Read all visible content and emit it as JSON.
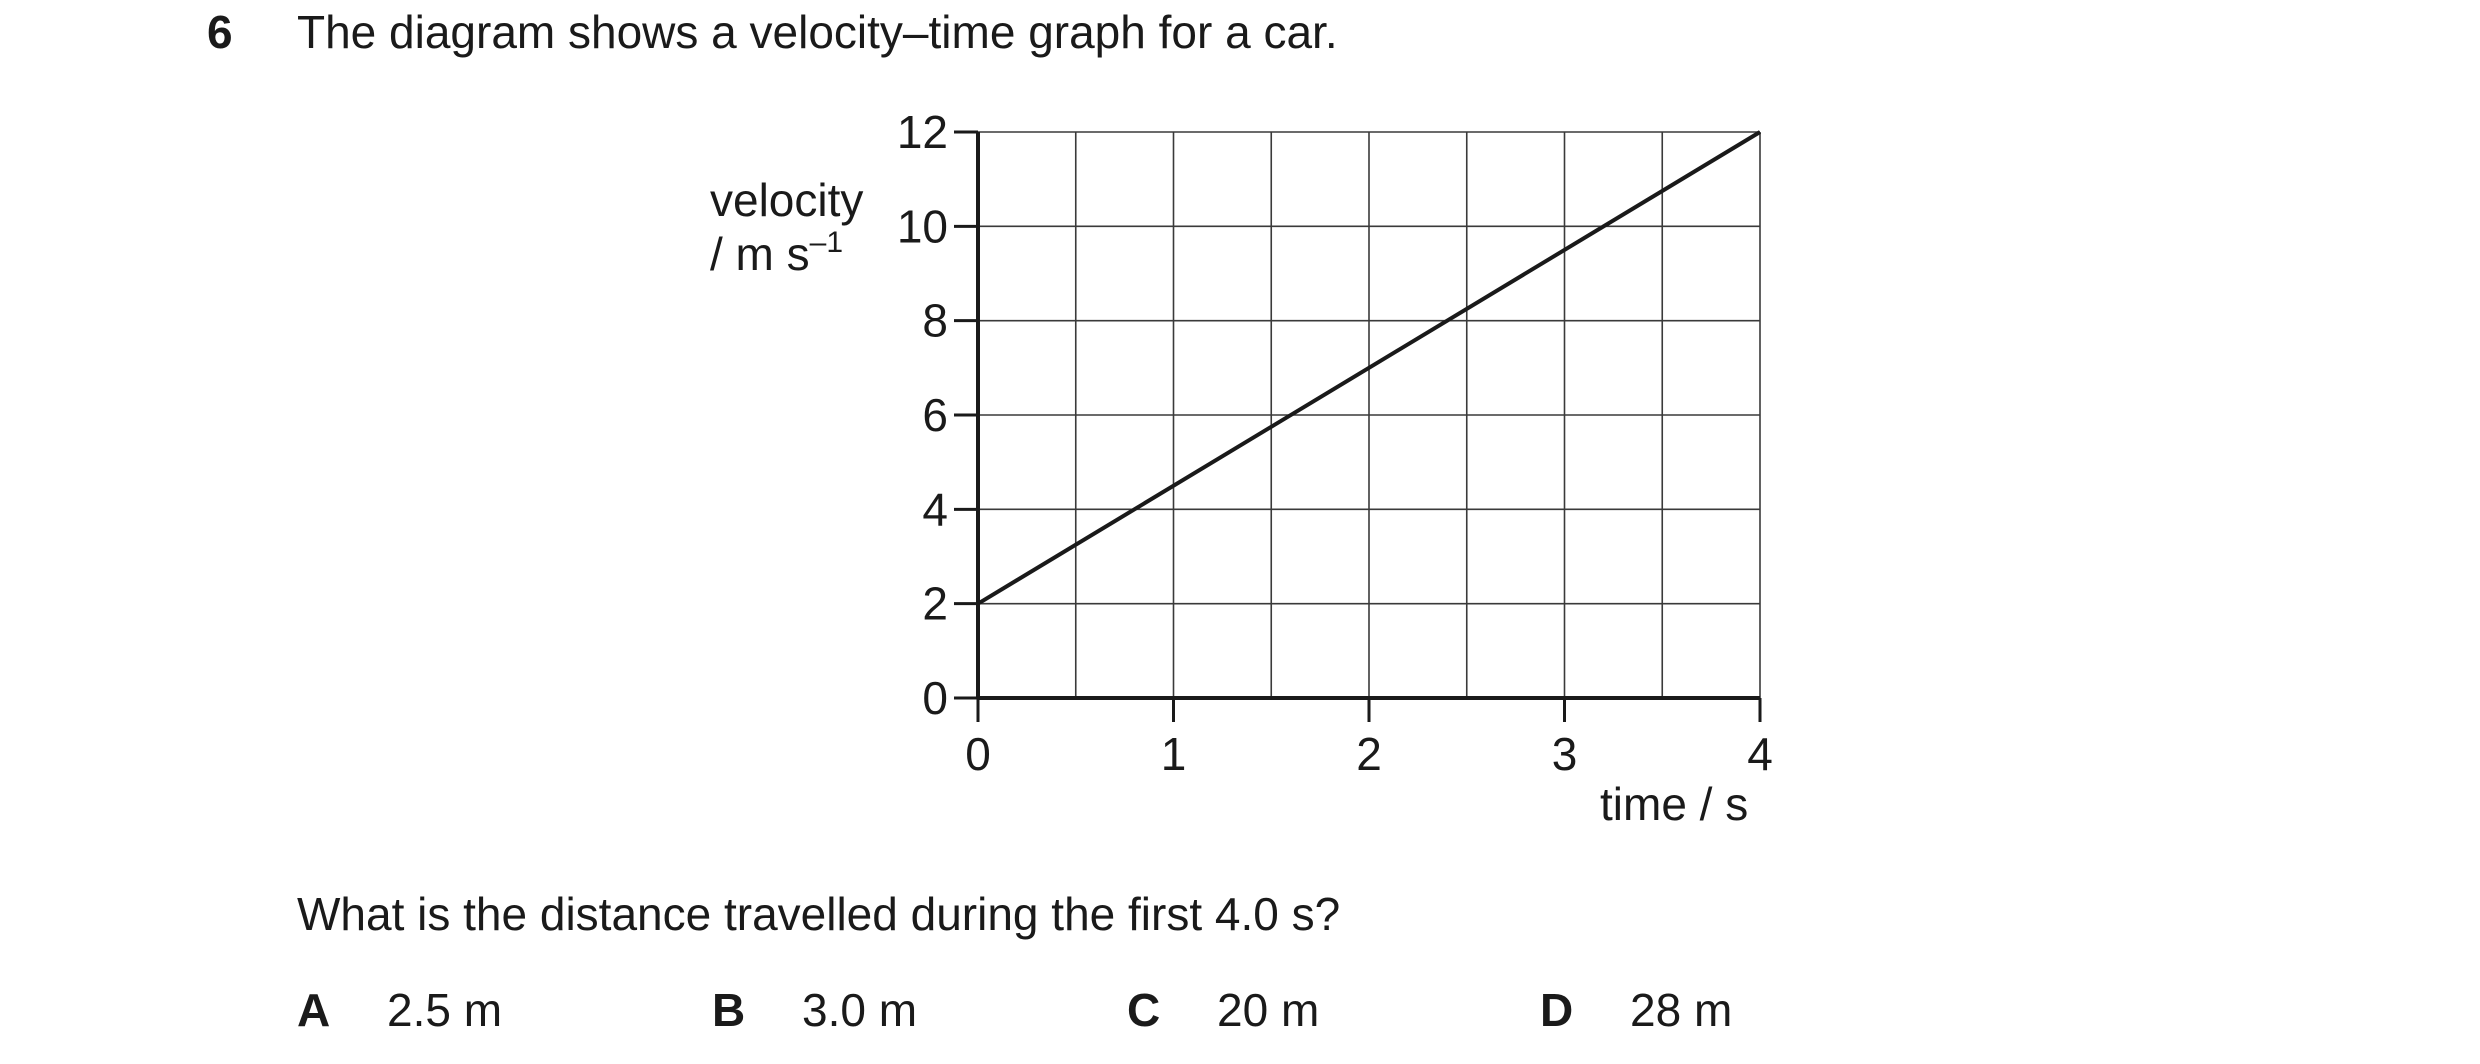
{
  "question": {
    "number": "6",
    "stem": "The diagram shows a velocity–time graph for a car.",
    "prompt": "What is the distance travelled during the first 4.0 s?"
  },
  "chart_data": {
    "type": "line",
    "title": "",
    "ylabel_line1": "velocity",
    "ylabel_unit_base": "/ m s",
    "ylabel_unit_exp": "–1",
    "xlabel": "time / s",
    "xlim": [
      0,
      4
    ],
    "ylim": [
      0,
      12
    ],
    "xticks": [
      "0",
      "1",
      "2",
      "3",
      "4"
    ],
    "yticks": [
      "0",
      "2",
      "4",
      "6",
      "8",
      "10",
      "12"
    ],
    "grid": true,
    "x_minor_step": 0.5,
    "y_minor_step": 2,
    "series": [
      {
        "x": [
          0,
          4
        ],
        "y": [
          2,
          12
        ]
      }
    ]
  },
  "options": [
    {
      "letter": "A",
      "text": "2.5 m"
    },
    {
      "letter": "B",
      "text": "3.0 m"
    },
    {
      "letter": "C",
      "text": "20 m"
    },
    {
      "letter": "D",
      "text": "28 m"
    }
  ]
}
